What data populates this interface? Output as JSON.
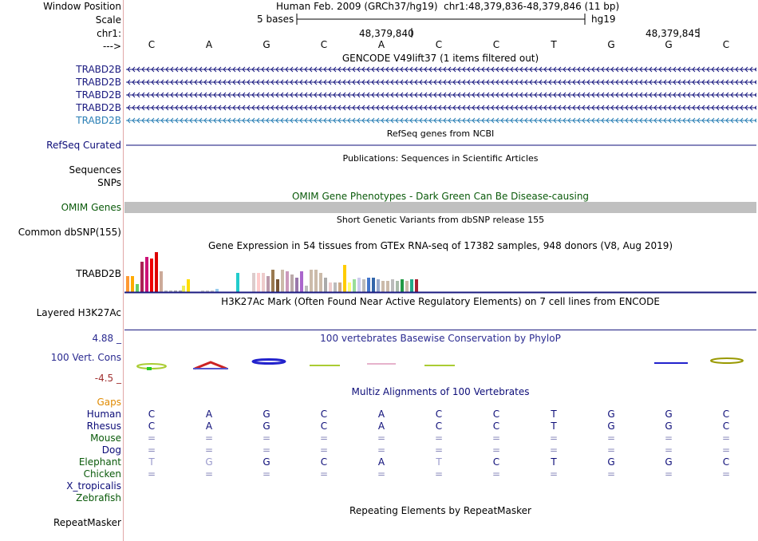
{
  "header": {
    "window_position_label": "Window Position",
    "scale_label": "Scale",
    "chrom_label": "chr1:",
    "strand_label": "--->",
    "assembly_text": "Human Feb. 2009 (GRCh37/hg19)",
    "position_text": "chr1:48,379,836-48,379,846 (11 bp)",
    "scale_text": "5 bases",
    "scale_db": "hg19",
    "coord_1": "48,379,840",
    "coord_2": "48,379,845"
  },
  "bases": [
    "C",
    "A",
    "G",
    "C",
    "A",
    "C",
    "C",
    "T",
    "G",
    "G",
    "C"
  ],
  "gencode": {
    "title": "GENCODE V49lift37 (1 items filtered out)",
    "tracks": [
      {
        "label": "TRABD2B",
        "color": "#1a1a80"
      },
      {
        "label": "TRABD2B",
        "color": "#1a1a80"
      },
      {
        "label": "TRABD2B",
        "color": "#1a1a80"
      },
      {
        "label": "TRABD2B",
        "color": "#1a1a80"
      },
      {
        "label": "TRABD2B",
        "color": "#2a7fb5"
      }
    ]
  },
  "refseq": {
    "title": "RefSeq genes from NCBI",
    "label": "RefSeq Curated",
    "color": "#0c0c78"
  },
  "publications": {
    "title": "Publications: Sequences in Scientific Articles",
    "label_1": "Sequences",
    "label_2": "SNPs"
  },
  "omim": {
    "title": "OMIM Gene Phenotypes - Dark Green Can Be Disease-causing",
    "label": "OMIM Genes",
    "color": "#0a5a0a"
  },
  "dbsnp": {
    "title": "Short Genetic Variants from dbSNP release 155",
    "label": "Common dbSNP(155)"
  },
  "gtex": {
    "title": "Gene Expression in 54 tissues from GTEx RNA-seq of 17382 samples, 948 donors (V8, Aug 2019)",
    "label": "TRABD2B"
  },
  "h3k27ac": {
    "title": "H3K27Ac Mark (Often Found Near Active Regulatory Elements) on 7 cell lines from ENCODE",
    "label": "Layered H3K27Ac"
  },
  "phylop": {
    "title": "100 vertebrates Basewise Conservation by PhyloP",
    "label": "100 Vert. Cons",
    "max": "4.88 _",
    "min": "-4.5 _",
    "color": "#2a2a90",
    "min_color": "#a03030"
  },
  "multiz": {
    "title": "Multiz Alignments of 100 Vertebrates",
    "gaps_label": "Gaps",
    "gaps_color": "#e08a00",
    "species": [
      {
        "label": "Human",
        "color": "#0c0c78",
        "bases": [
          "C",
          "A",
          "G",
          "C",
          "A",
          "C",
          "C",
          "T",
          "G",
          "G",
          "C"
        ]
      },
      {
        "label": "Rhesus",
        "color": "#0c0c78",
        "bases": [
          "C",
          "A",
          "G",
          "C",
          "A",
          "C",
          "C",
          "T",
          "G",
          "G",
          "C"
        ]
      },
      {
        "label": "Mouse",
        "color": "#0a5a0a",
        "bases": [
          "=",
          "=",
          "=",
          "=",
          "=",
          "=",
          "=",
          "=",
          "=",
          "=",
          "="
        ]
      },
      {
        "label": "Dog",
        "color": "#0c0c78",
        "bases": [
          "=",
          "=",
          "=",
          "=",
          "=",
          "=",
          "=",
          "=",
          "=",
          "=",
          "="
        ]
      },
      {
        "label": "Elephant",
        "color": "#0a5a0a",
        "bases": [
          "T",
          "G",
          "G",
          "C",
          "A",
          "T",
          "C",
          "T",
          "G",
          "G",
          "C"
        ]
      },
      {
        "label": "Chicken",
        "color": "#0a5a0a",
        "bases": [
          "=",
          "=",
          "=",
          "=",
          "=",
          "=",
          "=",
          "=",
          "=",
          "=",
          "="
        ]
      },
      {
        "label": "X_tropicalis",
        "color": "#0c0c78",
        "bases": [],
        "note": ""
      },
      {
        "label": "Zebrafish",
        "color": "#0a5a0a",
        "bases": []
      }
    ]
  },
  "repeatmasker": {
    "title": "Repeating Elements by RepeatMasker",
    "label": "RepeatMasker"
  }
}
